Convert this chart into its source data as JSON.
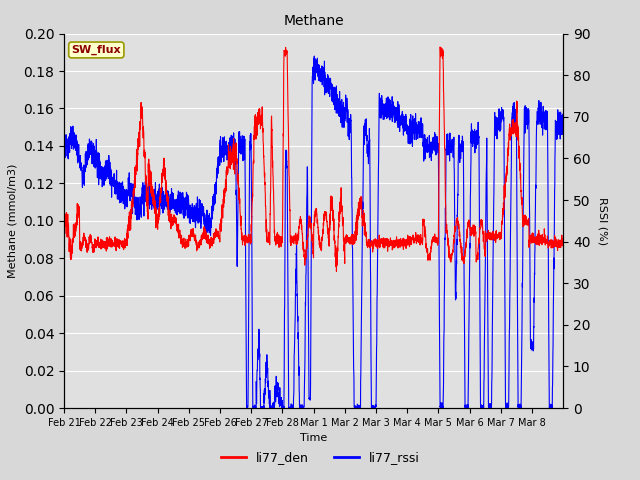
{
  "title": "Methane",
  "xlabel": "Time",
  "ylabel_left": "Methane (mmol/m3)",
  "ylabel_right": "RSSI (%)",
  "left_ylim": [
    0.0,
    0.2
  ],
  "right_ylim": [
    0,
    90
  ],
  "left_yticks": [
    0.0,
    0.02,
    0.04,
    0.06,
    0.08,
    0.1,
    0.12,
    0.14,
    0.16,
    0.18,
    0.2
  ],
  "right_yticks": [
    0,
    10,
    20,
    30,
    40,
    50,
    60,
    70,
    80,
    90
  ],
  "background_color": "#d8d8d8",
  "plot_bg_color": "#e0e0e0",
  "grid_color": "#ffffff",
  "legend_labels": [
    "li77_den",
    "li77_rssi"
  ],
  "legend_colors": [
    "red",
    "blue"
  ],
  "label_box_text": "SW_flux",
  "label_box_facecolor": "#ffffcc",
  "label_box_edgecolor": "#999900",
  "label_box_textcolor": "#8b0000",
  "line_color_den": "#ff0000",
  "line_color_rssi": "#0000ff",
  "line_width": 0.8,
  "x_tick_labels": [
    "Feb 21",
    "Feb 22",
    "Feb 23",
    "Feb 24",
    "Feb 25",
    "Feb 26",
    "Feb 27",
    "Feb 28",
    "Mar 1",
    "Mar 2",
    "Mar 3",
    "Mar 4",
    "Mar 5",
    "Mar 6",
    "Mar 7",
    "Mar 8"
  ],
  "n_days": 16
}
